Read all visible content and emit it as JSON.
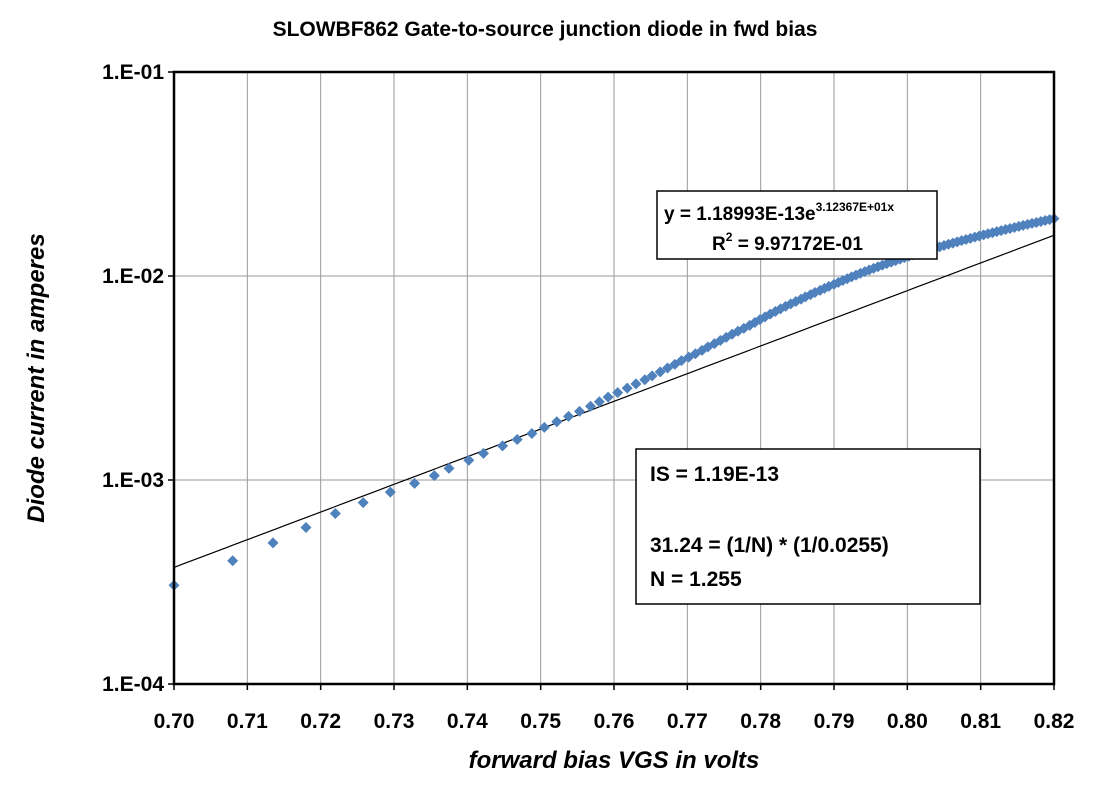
{
  "chart_data": {
    "type": "scatter",
    "title": "SLOWBF862  Gate-to-source junction diode in fwd bias",
    "xlabel": "forward bias  VGS  in volts",
    "ylabel": "Diode current  in amperes",
    "xlim": [
      0.7,
      0.82
    ],
    "ylim": [
      0.0001,
      0.1
    ],
    "yscale": "log",
    "grid": true,
    "x_tick_labels": [
      "0.70",
      "0.71",
      "0.72",
      "0.73",
      "0.74",
      "0.75",
      "0.76",
      "0.77",
      "0.78",
      "0.79",
      "0.80",
      "0.81",
      "0.82"
    ],
    "y_tick_labels": [
      "1.E-04",
      "1.E-03",
      "1.E-02",
      "1.E-01"
    ],
    "marker_color": "#4F81BD",
    "trendline": {
      "type": "exponential",
      "a": 1.18993e-13,
      "b": 31.2367,
      "color": "#000000",
      "eq_prefix": "y = 1.18993E-13e",
      "eq_exponent": "3.12367E+01x",
      "r2_prefix": "R",
      "r2_sup": "2",
      "r2_value": " = 9.97172E-01"
    },
    "annotation": {
      "line1": "IS = 1.19E-13",
      "line2": "31.24 = (1/N) * (1/0.0255)",
      "line3": "N = 1.255"
    },
    "series": [
      {
        "x": [
          0.7,
          0.708,
          0.7135,
          0.718,
          0.722,
          0.7258,
          0.7295,
          0.7328,
          0.7355,
          0.7375,
          0.7402,
          0.7422,
          0.7448,
          0.7468,
          0.7488,
          0.7505,
          0.7522,
          0.7538,
          0.7553,
          0.7568,
          0.758,
          0.7592,
          0.7605,
          0.7618,
          0.763,
          0.7642,
          0.7652,
          0.7663,
          0.7673,
          0.7683,
          0.7692,
          0.7702,
          0.7711,
          0.772,
          0.7728,
          0.7737,
          0.7745,
          0.7753,
          0.7761,
          0.7769,
          0.7777,
          0.7785,
          0.7792,
          0.7799,
          0.7806,
          0.7813,
          0.782,
          0.7827,
          0.7834,
          0.7841,
          0.7848,
          0.7855,
          0.7861,
          0.7868,
          0.7874,
          0.7881,
          0.7887,
          0.7893,
          0.79,
          0.7906,
          0.7912,
          0.7918,
          0.7924,
          0.793,
          0.7936,
          0.7942,
          0.7948,
          0.7954,
          0.796,
          0.7966,
          0.7972,
          0.7978,
          0.7984,
          0.799,
          0.7996,
          0.8002,
          0.8008,
          0.8014,
          0.802,
          0.8026,
          0.8032,
          0.8038,
          0.8044,
          0.805,
          0.8056,
          0.8062,
          0.8068,
          0.8074,
          0.808,
          0.8086,
          0.8092,
          0.8098,
          0.8104,
          0.811,
          0.8116,
          0.8122,
          0.8128,
          0.8134,
          0.814,
          0.8146,
          0.8152,
          0.8158,
          0.8164,
          0.817,
          0.8176,
          0.8182,
          0.8188,
          0.8194,
          0.82
        ],
        "y": [
          0.000305,
          0.000402,
          0.000492,
          0.000585,
          0.000685,
          0.000775,
          0.000872,
          0.000962,
          0.00105,
          0.00114,
          0.00125,
          0.00135,
          0.00147,
          0.00158,
          0.00169,
          0.00181,
          0.00193,
          0.00205,
          0.00217,
          0.0023,
          0.00242,
          0.00255,
          0.00268,
          0.00282,
          0.00296,
          0.0031,
          0.00324,
          0.00339,
          0.00354,
          0.00369,
          0.00385,
          0.004,
          0.00416,
          0.00432,
          0.00449,
          0.00466,
          0.00483,
          0.005,
          0.00518,
          0.00536,
          0.00554,
          0.00573,
          0.00592,
          0.00611,
          0.0063,
          0.0065,
          0.0067,
          0.0069,
          0.0071,
          0.0073,
          0.0075,
          0.0077,
          0.0079,
          0.0081,
          0.0083,
          0.0085,
          0.0087,
          0.0089,
          0.0091,
          0.0093,
          0.0095,
          0.0097,
          0.0099,
          0.0101,
          0.0103,
          0.0105,
          0.0107,
          0.0109,
          0.0111,
          0.0113,
          0.0115,
          0.0117,
          0.0119,
          0.0121,
          0.0123,
          0.0125,
          0.0127,
          0.0129,
          0.0131,
          0.0133,
          0.0135,
          0.0137,
          0.0139,
          0.0141,
          0.0143,
          0.0145,
          0.0147,
          0.0149,
          0.0151,
          0.0153,
          0.0155,
          0.0157,
          0.0159,
          0.0161,
          0.0163,
          0.0165,
          0.0167,
          0.0169,
          0.0171,
          0.0173,
          0.0175,
          0.0177,
          0.0179,
          0.0181,
          0.0183,
          0.0185,
          0.0187,
          0.0189,
          0.0191
        ]
      }
    ]
  }
}
